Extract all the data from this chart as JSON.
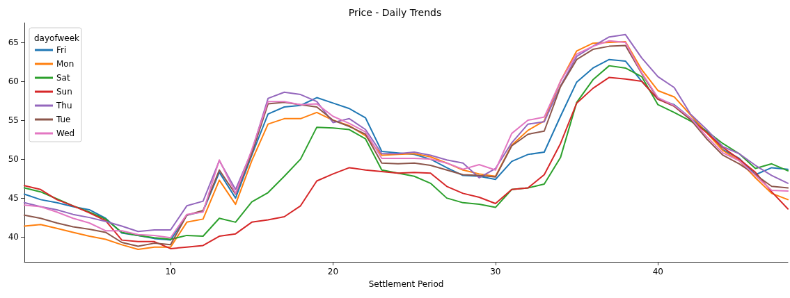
{
  "chart_data": {
    "type": "line",
    "title": "Price - Daily Trends",
    "xlabel": "Settlement Period",
    "legend_title": "dayofweek",
    "legend": "top left",
    "grid": false,
    "marker": "none",
    "line_style": "solid",
    "x": [
      1,
      2,
      3,
      4,
      5,
      6,
      7,
      8,
      9,
      10,
      11,
      12,
      13,
      14,
      15,
      16,
      17,
      18,
      19,
      20,
      21,
      22,
      23,
      24,
      25,
      26,
      27,
      28,
      29,
      30,
      31,
      32,
      33,
      34,
      35,
      36,
      37,
      38,
      39,
      40,
      41,
      42,
      43,
      44,
      45,
      46,
      47,
      48
    ],
    "xlim": [
      1,
      48
    ],
    "xticks": [
      10,
      20,
      30,
      40
    ],
    "ylim": [
      36.8,
      67.5
    ],
    "yticks": [
      40,
      45,
      50,
      55,
      60,
      65
    ],
    "series": [
      {
        "name": "Fri",
        "color": "#1f77b4",
        "values": [
          45.5,
          44.8,
          44.4,
          43.9,
          43.5,
          42.4,
          40.5,
          40.2,
          39.8,
          39.6,
          42.8,
          43.3,
          48.3,
          45.0,
          50.5,
          55.8,
          56.7,
          56.9,
          57.9,
          57.2,
          56.5,
          55.3,
          51.0,
          50.8,
          50.6,
          50.0,
          48.9,
          47.9,
          47.8,
          47.4,
          49.7,
          50.6,
          50.9,
          55.5,
          59.9,
          61.7,
          62.8,
          62.6,
          60.0,
          57.7,
          57.0,
          55.3,
          53.5,
          51.2,
          50.1,
          48.0,
          48.9,
          48.7
        ]
      },
      {
        "name": "Mon",
        "color": "#ff7f0e",
        "values": [
          41.4,
          41.6,
          41.1,
          40.6,
          40.1,
          39.7,
          39.0,
          38.4,
          38.7,
          38.7,
          41.9,
          42.3,
          47.3,
          44.2,
          49.8,
          54.5,
          55.2,
          55.2,
          56.0,
          55.0,
          54.3,
          53.0,
          50.5,
          50.6,
          50.7,
          50.3,
          49.5,
          48.6,
          48.1,
          47.8,
          51.8,
          53.7,
          54.9,
          60.0,
          63.9,
          64.9,
          65.0,
          65.1,
          61.5,
          58.8,
          58.0,
          55.7,
          53.4,
          51.1,
          49.8,
          47.6,
          45.6,
          44.8
        ]
      },
      {
        "name": "Sat",
        "color": "#2ca02c",
        "values": [
          46.3,
          45.8,
          44.9,
          44.0,
          43.2,
          42.3,
          40.6,
          40.2,
          39.9,
          39.7,
          40.2,
          40.1,
          42.4,
          41.9,
          44.5,
          45.7,
          47.8,
          50.0,
          54.1,
          54.0,
          53.8,
          52.6,
          48.6,
          48.2,
          47.8,
          46.9,
          45.0,
          44.4,
          44.2,
          43.8,
          46.1,
          46.3,
          46.8,
          50.2,
          57.3,
          60.2,
          62.0,
          61.7,
          60.6,
          57.0,
          56.0,
          54.9,
          53.6,
          52.0,
          50.7,
          48.8,
          49.4,
          48.5
        ]
      },
      {
        "name": "Sun",
        "color": "#d62728",
        "values": [
          46.6,
          46.1,
          44.8,
          44.0,
          43.1,
          42.1,
          39.6,
          39.4,
          39.4,
          38.5,
          38.7,
          38.9,
          40.1,
          40.4,
          41.9,
          42.2,
          42.6,
          44.0,
          47.2,
          48.1,
          48.9,
          48.6,
          48.4,
          48.2,
          48.3,
          48.2,
          46.5,
          45.6,
          45.1,
          44.3,
          46.1,
          46.3,
          48.0,
          52.0,
          57.2,
          59.1,
          60.5,
          60.3,
          60.0,
          57.7,
          56.8,
          55.1,
          53.4,
          51.5,
          50.0,
          48.3,
          45.8,
          43.6
        ]
      },
      {
        "name": "Thu",
        "color": "#9467bd",
        "values": [
          44.4,
          43.9,
          43.5,
          42.9,
          42.5,
          42.0,
          41.4,
          40.7,
          40.9,
          40.9,
          44.0,
          44.6,
          49.8,
          46.1,
          51.0,
          57.8,
          58.6,
          58.3,
          57.4,
          54.7,
          55.2,
          53.8,
          50.7,
          50.7,
          50.9,
          50.5,
          49.9,
          49.5,
          47.6,
          48.8,
          52.1,
          54.5,
          54.8,
          59.4,
          63.2,
          64.5,
          65.7,
          66.0,
          63.0,
          60.6,
          59.2,
          55.8,
          53.8,
          51.6,
          50.7,
          49.2,
          47.9,
          46.9
        ]
      },
      {
        "name": "Tue",
        "color": "#8c564b",
        "values": [
          42.8,
          42.4,
          41.8,
          41.3,
          41.0,
          40.6,
          39.3,
          38.8,
          39.2,
          39.0,
          42.8,
          43.4,
          48.6,
          45.5,
          50.7,
          57.1,
          57.3,
          57.0,
          56.7,
          55.0,
          54.2,
          53.2,
          49.5,
          49.4,
          49.5,
          49.2,
          48.6,
          48.0,
          47.9,
          47.7,
          51.7,
          53.2,
          53.6,
          59.3,
          62.8,
          64.1,
          64.5,
          64.6,
          61.0,
          57.8,
          56.8,
          55.1,
          52.6,
          50.5,
          49.4,
          48.0,
          46.5,
          46.3
        ]
      },
      {
        "name": "Wed",
        "color": "#e377c2",
        "values": [
          44.1,
          43.9,
          43.2,
          42.4,
          41.8,
          40.8,
          40.8,
          40.3,
          40.2,
          39.9,
          42.9,
          43.2,
          49.9,
          45.6,
          51.2,
          57.4,
          57.4,
          57.0,
          57.1,
          55.5,
          54.6,
          53.5,
          50.1,
          50.1,
          50.1,
          50.0,
          49.5,
          48.7,
          49.3,
          48.6,
          53.3,
          55.0,
          55.4,
          60.0,
          63.5,
          64.5,
          65.2,
          65.0,
          61.1,
          57.9,
          56.9,
          55.3,
          52.9,
          50.8,
          49.8,
          47.9,
          46.0,
          45.9
        ]
      }
    ]
  }
}
